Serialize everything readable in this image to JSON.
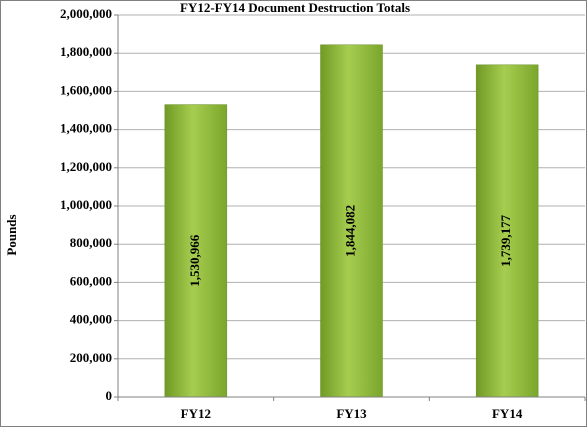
{
  "chart_data": {
    "type": "bar",
    "title": "FY12-FY14 Document Destruction Totals",
    "ylabel": "Pounds",
    "categories": [
      "FY12",
      "FY13",
      "FY14"
    ],
    "values": [
      1530966,
      1844082,
      1739177
    ],
    "value_labels": [
      "1,530,966",
      "1,844,082",
      "1,739,177"
    ],
    "color": "#8cb43a",
    "ylim": [
      0,
      2000000
    ],
    "yticks": [
      0,
      {
        "value": 200000,
        "label": "200,000"
      },
      {
        "value": 400000,
        "label": "400,000"
      },
      {
        "value": 600000,
        "label": "600,000"
      },
      {
        "value": 800000,
        "label": "800,000"
      },
      {
        "value": 1000000,
        "label": "1,000,000"
      },
      {
        "value": 1200000,
        "label": "1,200,000"
      },
      {
        "value": 1400000,
        "label": "1,400,000"
      },
      {
        "value": 1600000,
        "label": "1,600,000"
      },
      {
        "value": 1800000,
        "label": "1,800,000"
      },
      {
        "value": 2000000,
        "label": "2,000,000"
      }
    ],
    "grid": true
  }
}
